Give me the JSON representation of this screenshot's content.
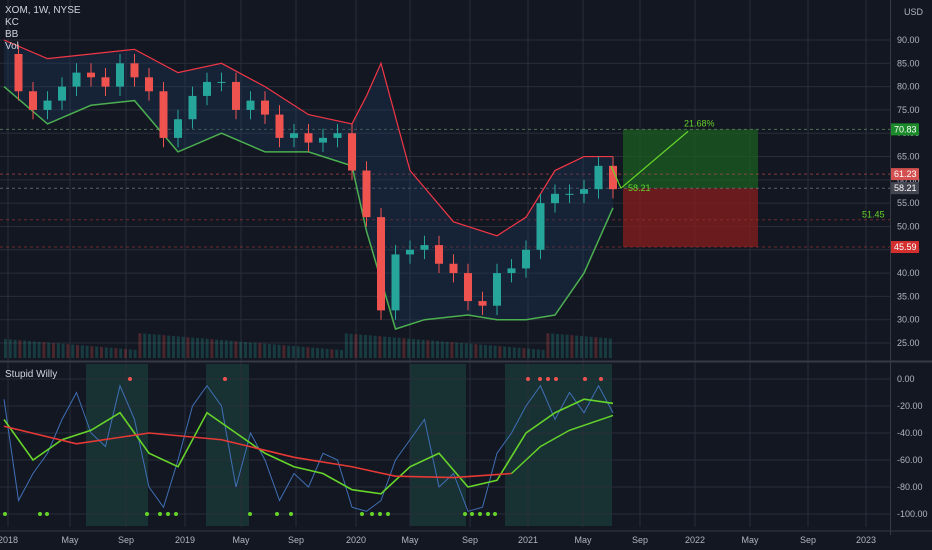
{
  "header": {
    "symbol": "XOM, 1W, NYSE",
    "currency": "USD",
    "indicators": [
      "KC",
      "BB",
      "Vol"
    ],
    "pane2_title": "Stupid Willy"
  },
  "colors": {
    "background": "#131722",
    "grid": "#2a2e39",
    "candle_up": "#26a69a",
    "candle_down": "#ef5350",
    "kc_fill": "#1e3a5f",
    "bb_upper": "#f23645",
    "bb_lower": "#4caf50",
    "target_zone": "#1b5e20",
    "stop_zone": "#7f1d1d",
    "willy": "#3f6fb5",
    "willy_ema_fast": "#66d42a",
    "willy_ema_slow": "#e53935"
  },
  "chart_data": [
    {
      "type": "line",
      "pane": "price",
      "title": "XOM, 1W, NYSE",
      "ylabel": "USD",
      "ylim": [
        21,
        93
      ],
      "y_ticks": [
        "90.00",
        "85.00",
        "80.00",
        "75.00",
        "70.00",
        "65.00",
        "60.00",
        "55.00",
        "50.00",
        "45.00",
        "40.00",
        "35.00",
        "30.00",
        "25.00"
      ],
      "x_ticks": [
        "2018",
        "May",
        "Sep",
        "2019",
        "May",
        "Sep",
        "2020",
        "May",
        "Sep",
        "2021",
        "May",
        "Sep",
        "2022",
        "May",
        "Sep",
        "2023"
      ],
      "price_labels": [
        {
          "text": "70.83",
          "role": "target"
        },
        {
          "text": "61.23",
          "role": "last"
        },
        {
          "text": "58.21",
          "role": "entry"
        },
        {
          "text": "45.59",
          "role": "stop"
        }
      ],
      "annotations": [
        {
          "text": "21.68%",
          "role": "target-percent"
        },
        {
          "text": "58.21",
          "role": "entry-label"
        },
        {
          "text": "51.45",
          "role": "level-label"
        }
      ],
      "close_series": [
        {
          "x": "2018-01",
          "y": 87
        },
        {
          "x": "2018-02",
          "y": 79
        },
        {
          "x": "2018-03",
          "y": 75
        },
        {
          "x": "2018-04",
          "y": 77
        },
        {
          "x": "2018-05",
          "y": 80
        },
        {
          "x": "2018-06",
          "y": 83
        },
        {
          "x": "2018-07",
          "y": 82
        },
        {
          "x": "2018-08",
          "y": 80
        },
        {
          "x": "2018-09",
          "y": 85
        },
        {
          "x": "2018-10",
          "y": 82
        },
        {
          "x": "2018-11",
          "y": 79
        },
        {
          "x": "2018-12",
          "y": 69
        },
        {
          "x": "2019-01",
          "y": 73
        },
        {
          "x": "2019-02",
          "y": 78
        },
        {
          "x": "2019-03",
          "y": 81
        },
        {
          "x": "2019-04",
          "y": 81
        },
        {
          "x": "2019-05",
          "y": 75
        },
        {
          "x": "2019-06",
          "y": 77
        },
        {
          "x": "2019-07",
          "y": 74
        },
        {
          "x": "2019-08",
          "y": 69
        },
        {
          "x": "2019-09",
          "y": 70
        },
        {
          "x": "2019-10",
          "y": 68
        },
        {
          "x": "2019-11",
          "y": 69
        },
        {
          "x": "2019-12",
          "y": 70
        },
        {
          "x": "2020-01",
          "y": 62
        },
        {
          "x": "2020-02",
          "y": 52
        },
        {
          "x": "2020-03",
          "y": 32
        },
        {
          "x": "2020-04",
          "y": 44
        },
        {
          "x": "2020-05",
          "y": 45
        },
        {
          "x": "2020-06",
          "y": 46
        },
        {
          "x": "2020-07",
          "y": 42
        },
        {
          "x": "2020-08",
          "y": 40
        },
        {
          "x": "2020-09",
          "y": 34
        },
        {
          "x": "2020-10",
          "y": 33
        },
        {
          "x": "2020-11",
          "y": 40
        },
        {
          "x": "2020-12",
          "y": 41
        },
        {
          "x": "2021-01",
          "y": 45
        },
        {
          "x": "2021-02",
          "y": 55
        },
        {
          "x": "2021-03",
          "y": 57
        },
        {
          "x": "2021-04",
          "y": 57
        },
        {
          "x": "2021-05",
          "y": 58
        },
        {
          "x": "2021-06",
          "y": 63
        },
        {
          "x": "2021-07",
          "y": 58
        }
      ],
      "bollinger_upper": [
        {
          "x": "2018-01",
          "y": 90
        },
        {
          "x": "2018-04",
          "y": 86
        },
        {
          "x": "2018-07",
          "y": 87
        },
        {
          "x": "2018-10",
          "y": 88
        },
        {
          "x": "2019-01",
          "y": 83
        },
        {
          "x": "2019-04",
          "y": 85
        },
        {
          "x": "2019-07",
          "y": 80
        },
        {
          "x": "2019-10",
          "y": 74
        },
        {
          "x": "2020-01",
          "y": 72
        },
        {
          "x": "2020-02",
          "y": 78
        },
        {
          "x": "2020-03",
          "y": 85
        },
        {
          "x": "2020-05",
          "y": 62
        },
        {
          "x": "2020-08",
          "y": 51
        },
        {
          "x": "2020-11",
          "y": 48
        },
        {
          "x": "2021-01",
          "y": 52
        },
        {
          "x": "2021-03",
          "y": 62
        },
        {
          "x": "2021-05",
          "y": 65
        },
        {
          "x": "2021-07",
          "y": 65
        }
      ],
      "bollinger_lower": [
        {
          "x": "2018-01",
          "y": 80
        },
        {
          "x": "2018-04",
          "y": 72
        },
        {
          "x": "2018-07",
          "y": 76
        },
        {
          "x": "2018-10",
          "y": 77
        },
        {
          "x": "2019-01",
          "y": 66
        },
        {
          "x": "2019-04",
          "y": 70
        },
        {
          "x": "2019-07",
          "y": 66
        },
        {
          "x": "2019-10",
          "y": 66
        },
        {
          "x": "2020-01",
          "y": 63
        },
        {
          "x": "2020-02",
          "y": 49
        },
        {
          "x": "2020-04",
          "y": 28
        },
        {
          "x": "2020-06",
          "y": 30
        },
        {
          "x": "2020-09",
          "y": 31
        },
        {
          "x": "2020-11",
          "y": 30
        },
        {
          "x": "2021-01",
          "y": 30
        },
        {
          "x": "2021-03",
          "y": 31
        },
        {
          "x": "2021-05",
          "y": 40
        },
        {
          "x": "2021-07",
          "y": 54
        }
      ]
    },
    {
      "type": "line",
      "pane": "oscillator",
      "title": "Stupid Willy",
      "ylim": [
        -105,
        5
      ],
      "y_ticks": [
        "0.00",
        "-20.00",
        "-40.00",
        "-60.00",
        "-80.00",
        "-100.00"
      ],
      "series": [
        {
          "values": [
            {
              "x": "2018-01",
              "y": -15
            },
            {
              "x": "2018-02",
              "y": -90
            },
            {
              "x": "2018-03",
              "y": -70
            },
            {
              "x": "2018-04",
              "y": -55
            },
            {
              "x": "2018-05",
              "y": -30
            },
            {
              "x": "2018-06",
              "y": -10
            },
            {
              "x": "2018-07",
              "y": -40
            },
            {
              "x": "2018-08",
              "y": -50
            },
            {
              "x": "2018-09",
              "y": -5
            },
            {
              "x": "2018-10",
              "y": -30
            },
            {
              "x": "2018-11",
              "y": -80
            },
            {
              "x": "2018-12",
              "y": -95
            },
            {
              "x": "2019-01",
              "y": -60
            },
            {
              "x": "2019-02",
              "y": -20
            },
            {
              "x": "2019-03",
              "y": -5
            },
            {
              "x": "2019-04",
              "y": -20
            },
            {
              "x": "2019-05",
              "y": -80
            },
            {
              "x": "2019-06",
              "y": -40
            },
            {
              "x": "2019-07",
              "y": -60
            },
            {
              "x": "2019-08",
              "y": -90
            },
            {
              "x": "2019-09",
              "y": -70
            },
            {
              "x": "2019-10",
              "y": -80
            },
            {
              "x": "2019-11",
              "y": -55
            },
            {
              "x": "2019-12",
              "y": -60
            },
            {
              "x": "2020-01",
              "y": -95
            },
            {
              "x": "2020-02",
              "y": -98
            },
            {
              "x": "2020-03",
              "y": -90
            },
            {
              "x": "2020-04",
              "y": -60
            },
            {
              "x": "2020-05",
              "y": -45
            },
            {
              "x": "2020-06",
              "y": -30
            },
            {
              "x": "2020-07",
              "y": -80
            },
            {
              "x": "2020-08",
              "y": -70
            },
            {
              "x": "2020-09",
              "y": -98
            },
            {
              "x": "2020-10",
              "y": -95
            },
            {
              "x": "2020-11",
              "y": -55
            },
            {
              "x": "2020-12",
              "y": -40
            },
            {
              "x": "2021-01",
              "y": -20
            },
            {
              "x": "2021-02",
              "y": -5
            },
            {
              "x": "2021-03",
              "y": -30
            },
            {
              "x": "2021-04",
              "y": -10
            },
            {
              "x": "2021-05",
              "y": -25
            },
            {
              "x": "2021-06",
              "y": -5
            },
            {
              "x": "2021-07",
              "y": -25
            }
          ]
        },
        {
          "values": [
            {
              "x": "2018-01",
              "y": -30
            },
            {
              "x": "2018-03",
              "y": -60
            },
            {
              "x": "2018-05",
              "y": -45
            },
            {
              "x": "2018-07",
              "y": -38
            },
            {
              "x": "2018-09",
              "y": -25
            },
            {
              "x": "2018-11",
              "y": -55
            },
            {
              "x": "2019-01",
              "y": -65
            },
            {
              "x": "2019-03",
              "y": -25
            },
            {
              "x": "2019-05",
              "y": -40
            },
            {
              "x": "2019-07",
              "y": -55
            },
            {
              "x": "2019-09",
              "y": -65
            },
            {
              "x": "2019-11",
              "y": -70
            },
            {
              "x": "2020-01",
              "y": -82
            },
            {
              "x": "2020-03",
              "y": -85
            },
            {
              "x": "2020-05",
              "y": -65
            },
            {
              "x": "2020-07",
              "y": -55
            },
            {
              "x": "2020-09",
              "y": -80
            },
            {
              "x": "2020-11",
              "y": -75
            },
            {
              "x": "2021-01",
              "y": -40
            },
            {
              "x": "2021-03",
              "y": -25
            },
            {
              "x": "2021-05",
              "y": -15
            },
            {
              "x": "2021-07",
              "y": -18
            }
          ]
        },
        {
          "values": [
            {
              "x": "2018-01",
              "y": -35
            },
            {
              "x": "2018-06",
              "y": -48
            },
            {
              "x": "2018-11",
              "y": -40
            },
            {
              "x": "2019-04",
              "y": -45
            },
            {
              "x": "2019-09",
              "y": -58
            },
            {
              "x": "2020-01",
              "y": -65
            },
            {
              "x": "2020-04",
              "y": -72
            },
            {
              "x": "2020-08",
              "y": -73
            },
            {
              "x": "2020-12",
              "y": -70
            }
          ]
        },
        {
          "values": [
            {
              "x": "2020-12",
              "y": -70
            },
            {
              "x": "2021-02",
              "y": -50
            },
            {
              "x": "2021-04",
              "y": -38
            },
            {
              "x": "2021-07",
              "y": -27
            }
          ]
        }
      ]
    }
  ]
}
